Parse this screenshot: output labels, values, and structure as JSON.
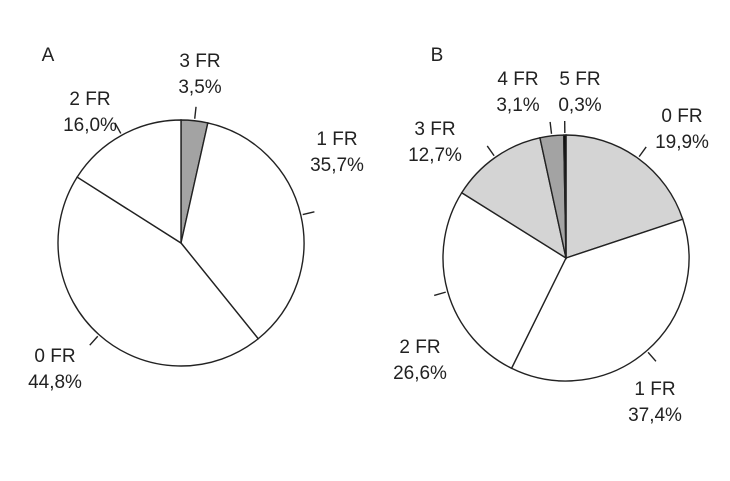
{
  "chart_data": [
    {
      "type": "pie",
      "title": "A",
      "categories": [
        "3 FR",
        "1 FR",
        "0 FR",
        "2 FR"
      ],
      "values": [
        3.5,
        35.7,
        44.8,
        16.0
      ],
      "value_labels": [
        "3,5%",
        "35,7%",
        "44,8%",
        "16,0%"
      ],
      "colors": [
        "#a3a3a3",
        "#ffffff",
        "#ffffff",
        "#ffffff"
      ]
    },
    {
      "type": "pie",
      "title": "B",
      "categories": [
        "0 FR",
        "1 FR",
        "2 FR",
        "3 FR",
        "4 FR",
        "5 FR"
      ],
      "values": [
        19.9,
        37.4,
        26.6,
        12.7,
        3.1,
        0.3
      ],
      "value_labels": [
        "19,9%",
        "37,4%",
        "26,6%",
        "12,7%",
        "3,1%",
        "0,3%"
      ],
      "colors": [
        "#d4d4d4",
        "#ffffff",
        "#ffffff",
        "#d4d4d4",
        "#a3a3a3",
        "#000000"
      ]
    }
  ]
}
